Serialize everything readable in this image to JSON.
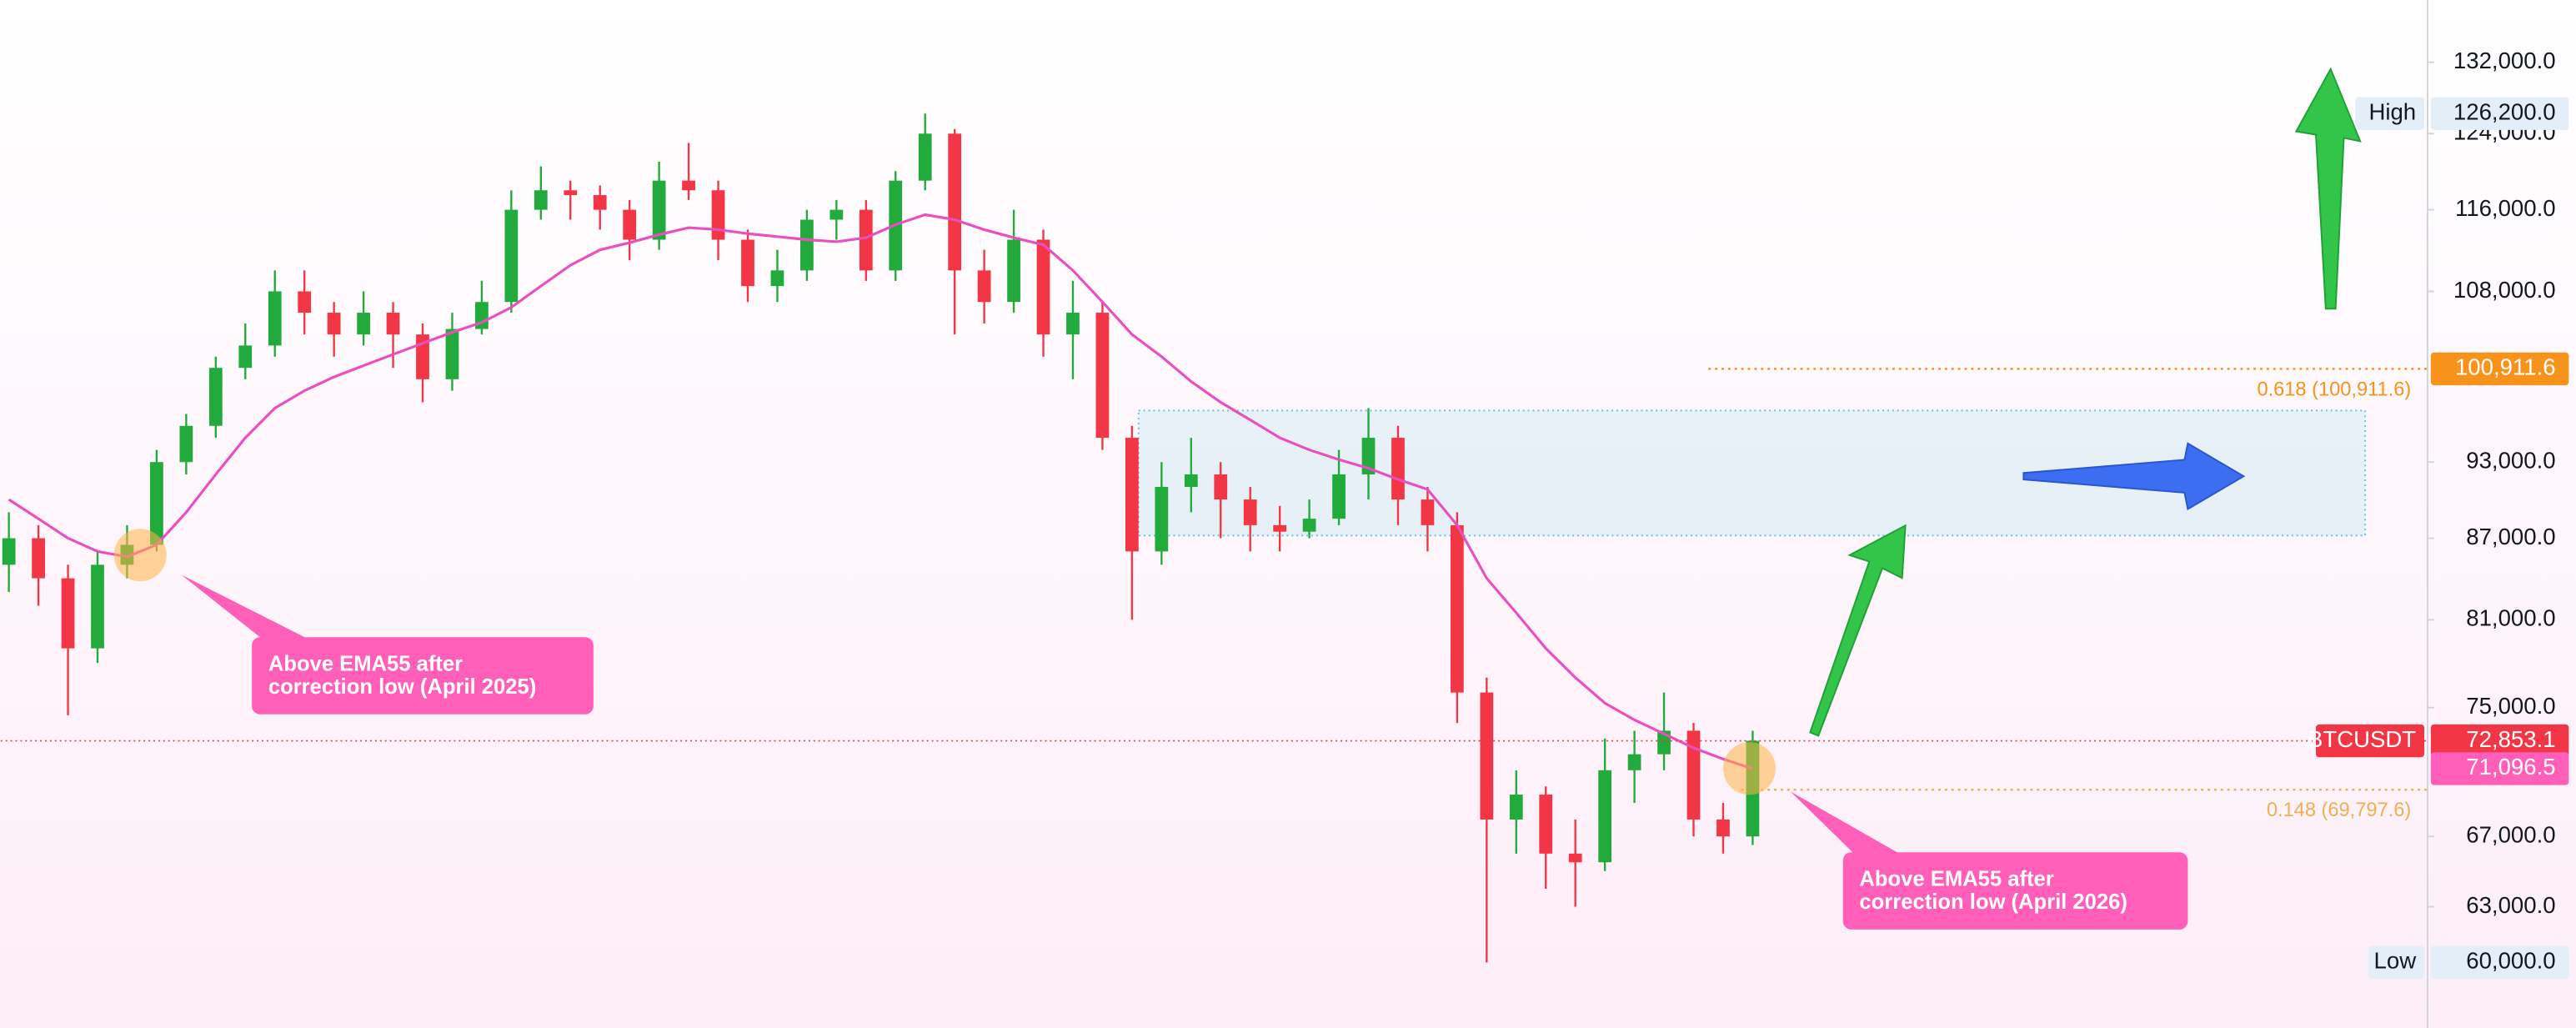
{
  "chart_data": {
    "type": "candlestick",
    "ylim": [
      56650,
      139400
    ],
    "log_scale": true,
    "grid": false,
    "up_color": "#22ab3c",
    "down_color": "#f23645",
    "yticks": [
      {
        "value": 132000,
        "label": "132,000.0"
      },
      {
        "value": 124000,
        "label": "124,000.0"
      },
      {
        "value": 116000,
        "label": "116,000.0"
      },
      {
        "value": 108000,
        "label": "108,000.0"
      },
      {
        "value": 93000,
        "label": "93,000.0"
      },
      {
        "value": 87000,
        "label": "87,000.0"
      },
      {
        "value": 81000,
        "label": "81,000.0"
      },
      {
        "value": 75000,
        "label": "75,000.0"
      },
      {
        "value": 67000,
        "label": "67,000.0"
      },
      {
        "value": 63000,
        "label": "63,000.0"
      }
    ],
    "candles": [
      [
        85000,
        89000,
        83000,
        87000
      ],
      [
        87000,
        88000,
        82000,
        84000
      ],
      [
        84000,
        85000,
        74500,
        79000
      ],
      [
        79000,
        86000,
        78000,
        85000
      ],
      [
        85000,
        88000,
        84000,
        86500
      ],
      [
        86500,
        94000,
        86000,
        93000
      ],
      [
        93000,
        97000,
        92000,
        96000
      ],
      [
        96000,
        102000,
        95000,
        101000
      ],
      [
        101000,
        105000,
        100000,
        103000
      ],
      [
        103000,
        110000,
        102000,
        108000
      ],
      [
        108000,
        110000,
        104000,
        106000
      ],
      [
        106000,
        107000,
        102000,
        104000
      ],
      [
        104000,
        108000,
        103000,
        106000
      ],
      [
        106000,
        107000,
        101000,
        104000
      ],
      [
        104000,
        105000,
        98000,
        100000
      ],
      [
        100000,
        106000,
        99000,
        104500
      ],
      [
        104500,
        109000,
        104000,
        107000
      ],
      [
        107000,
        118000,
        106000,
        116000
      ],
      [
        116000,
        120500,
        115000,
        118000
      ],
      [
        118000,
        119000,
        115000,
        117500
      ],
      [
        117500,
        118500,
        114000,
        116000
      ],
      [
        116000,
        117000,
        111000,
        113000
      ],
      [
        113000,
        121000,
        112000,
        119000
      ],
      [
        119000,
        123000,
        117000,
        118000
      ],
      [
        118000,
        119000,
        111000,
        113000
      ],
      [
        113000,
        114000,
        107000,
        108500
      ],
      [
        108500,
        112000,
        107000,
        110000
      ],
      [
        110000,
        116000,
        109000,
        115000
      ],
      [
        115000,
        117000,
        113000,
        116000
      ],
      [
        116000,
        117000,
        109000,
        110000
      ],
      [
        110000,
        120000,
        109000,
        119000
      ],
      [
        119000,
        126200,
        118000,
        124000
      ],
      [
        124000,
        124500,
        104000,
        110000
      ],
      [
        110000,
        112000,
        105000,
        107000
      ],
      [
        107000,
        116000,
        106000,
        113000
      ],
      [
        113000,
        114000,
        102000,
        104000
      ],
      [
        104000,
        109000,
        100000,
        106000
      ],
      [
        106000,
        107000,
        94000,
        95000
      ],
      [
        95000,
        96000,
        81000,
        86000
      ],
      [
        86000,
        93000,
        85000,
        91000
      ],
      [
        91000,
        95000,
        89000,
        92000
      ],
      [
        92000,
        93000,
        87000,
        90000
      ],
      [
        90000,
        91000,
        86000,
        88000
      ],
      [
        88000,
        89500,
        86000,
        87500
      ],
      [
        87500,
        90000,
        87000,
        88500
      ],
      [
        88500,
        94000,
        88000,
        92000
      ],
      [
        92000,
        97500,
        90000,
        95000
      ],
      [
        95000,
        96000,
        88000,
        90000
      ],
      [
        90000,
        91000,
        86000,
        88000
      ],
      [
        88000,
        89000,
        74000,
        76000
      ],
      [
        76000,
        77000,
        60000,
        68000
      ],
      [
        68000,
        71000,
        66000,
        69500
      ],
      [
        69500,
        70000,
        64000,
        66000
      ],
      [
        66000,
        68000,
        63000,
        65500
      ],
      [
        65500,
        73000,
        65000,
        71000
      ],
      [
        71000,
        73500,
        69000,
        72000
      ],
      [
        72000,
        76000,
        71000,
        73500
      ],
      [
        73500,
        74000,
        67000,
        68000
      ],
      [
        68000,
        69000,
        66000,
        67000
      ],
      [
        67000,
        73500,
        66500,
        72853.1
      ]
    ],
    "ema": {
      "color": "#e94fc0",
      "values": [
        90000,
        88500,
        87000,
        86000,
        85600,
        86500,
        89000,
        92000,
        95000,
        97500,
        99000,
        100200,
        101200,
        102200,
        103200,
        104200,
        105100,
        106500,
        108500,
        110500,
        112000,
        112700,
        113500,
        114200,
        114000,
        113600,
        113300,
        113000,
        112800,
        113200,
        114500,
        115500,
        115000,
        114000,
        113200,
        112500,
        110000,
        107000,
        104000,
        102000,
        99800,
        98000,
        96500,
        95000,
        94000,
        93200,
        92500,
        91600,
        90800,
        88000,
        84000,
        81500,
        79000,
        77000,
        75300,
        74200,
        73300,
        72400,
        71700,
        71096.5
      ]
    },
    "zone": {
      "top": 97300,
      "bottom": 87200,
      "color": "#5ec8dc"
    },
    "levels": [
      {
        "value": 100911.6,
        "label": "0.618 (100,911.6)",
        "color": "#f7931a"
      },
      {
        "value": 69797.6,
        "label": "0.148 (69,797.6)",
        "color": "#f0b050"
      }
    ],
    "price_labels": [
      {
        "tag": "High",
        "value": 126200,
        "label": "126,200.0",
        "bg": "#e3eef9",
        "fg": "#131722"
      },
      {
        "value": 100911.6,
        "label": "100,911.6",
        "bg": "#f7931a",
        "fg": "#ffffff"
      },
      {
        "tag": "BTCUSDT",
        "value": 72853.1,
        "label": "72,853.1",
        "bg": "#f23645",
        "fg": "#ffffff",
        "line": true
      },
      {
        "value": 71096.5,
        "label": "71,096.5",
        "bg": "#ff5fb8",
        "fg": "#ffffff"
      },
      {
        "tag": "Low",
        "value": 60000,
        "label": "60,000.0",
        "bg": "#e3eef9",
        "fg": "#131722"
      }
    ],
    "callouts": [
      {
        "lines": [
          "Above EMA55 after",
          "correction low (April 2025)"
        ]
      },
      {
        "lines": [
          "Above EMA55 after",
          "correction low (April 2026)"
        ]
      }
    ]
  }
}
